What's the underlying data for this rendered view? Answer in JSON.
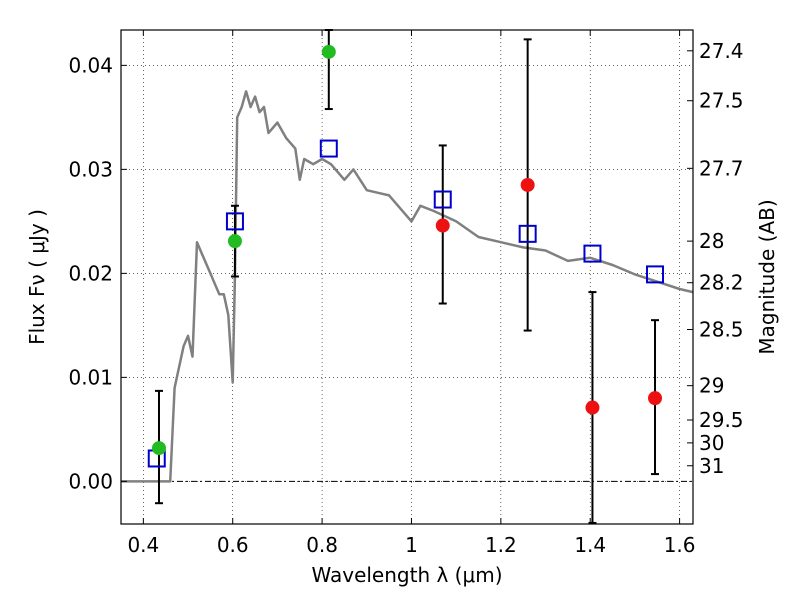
{
  "chart_data": {
    "type": "scatter",
    "xlabel": "Wavelength  λ (μm)",
    "ylabel": "Flux  Fν  ( μJy )",
    "ylabel_right": "Magnitude (AB)",
    "xlim": [
      0.35,
      1.63
    ],
    "ylim": [
      -0.0041,
      0.0434
    ],
    "grid": true,
    "x_ticks": [
      0.4,
      0.6,
      0.8,
      1.0,
      1.2,
      1.4,
      1.6
    ],
    "x_tick_labels": [
      "0.4",
      "0.6",
      "0.8",
      "1",
      "1.2",
      "1.4",
      "1.6"
    ],
    "y_ticks": [
      0.0,
      0.01,
      0.02,
      0.03,
      0.04
    ],
    "y_tick_labels": [
      "0.00",
      "0.01",
      "0.02",
      "0.03",
      "0.04"
    ],
    "right_ticks": [
      {
        "flux": 0.0414,
        "label": "27.4"
      },
      {
        "flux": 0.0366,
        "label": "27.5"
      },
      {
        "flux": 0.0301,
        "label": "27.7"
      },
      {
        "flux": 0.0231,
        "label": "28"
      },
      {
        "flux": 0.0191,
        "label": "28.2"
      },
      {
        "flux": 0.0146,
        "label": "28.5"
      },
      {
        "flux": 0.0092,
        "label": "29"
      },
      {
        "flux": 0.0059,
        "label": "29.5"
      },
      {
        "flux": 0.0037,
        "label": "30"
      },
      {
        "flux": 0.0015,
        "label": "31"
      }
    ],
    "colors": {
      "model": "#808080",
      "model_photometry": "#0000cc",
      "green_points": "#22bb22",
      "red_points": "#ee1111",
      "errorbar": "#000000"
    },
    "model_spectrum": {
      "x": [
        0.35,
        0.46,
        0.47,
        0.48,
        0.49,
        0.5,
        0.51,
        0.52,
        0.53,
        0.54,
        0.55,
        0.56,
        0.57,
        0.58,
        0.59,
        0.6,
        0.605,
        0.61,
        0.62,
        0.63,
        0.64,
        0.65,
        0.66,
        0.67,
        0.68,
        0.69,
        0.7,
        0.72,
        0.74,
        0.75,
        0.76,
        0.78,
        0.8,
        0.82,
        0.85,
        0.87,
        0.9,
        0.95,
        1.0,
        1.02,
        1.05,
        1.1,
        1.15,
        1.2,
        1.25,
        1.3,
        1.35,
        1.4,
        1.45,
        1.5,
        1.55,
        1.6,
        1.63
      ],
      "y": [
        0.0,
        0.0,
        0.009,
        0.011,
        0.013,
        0.014,
        0.012,
        0.023,
        0.022,
        0.021,
        0.02,
        0.019,
        0.018,
        0.018,
        0.016,
        0.0095,
        0.02,
        0.035,
        0.036,
        0.0375,
        0.036,
        0.037,
        0.0355,
        0.036,
        0.0335,
        0.034,
        0.0345,
        0.033,
        0.032,
        0.029,
        0.031,
        0.0305,
        0.031,
        0.0305,
        0.029,
        0.03,
        0.028,
        0.0275,
        0.025,
        0.0265,
        0.026,
        0.025,
        0.0235,
        0.023,
        0.0225,
        0.0222,
        0.0212,
        0.0215,
        0.0208,
        0.0199,
        0.0192,
        0.0185,
        0.0182
      ]
    },
    "model_photometry": {
      "x": [
        0.43,
        0.605,
        0.815,
        1.07,
        1.26,
        1.405,
        1.545
      ],
      "y": [
        0.0022,
        0.025,
        0.032,
        0.0271,
        0.0238,
        0.0219,
        0.0199
      ]
    },
    "observed_green": {
      "x": [
        0.435,
        0.605,
        0.815
      ],
      "y": [
        0.0032,
        0.0231,
        0.0413
      ],
      "err_low": [
        0.0053,
        0.0034,
        0.0055
      ],
      "err_high": [
        0.0055,
        0.0034,
        0.0021
      ]
    },
    "observed_red": {
      "x": [
        1.07,
        1.26,
        1.405,
        1.545
      ],
      "y": [
        0.0246,
        0.0285,
        0.0071,
        0.008
      ],
      "err_low": [
        0.0075,
        0.014,
        0.0111,
        0.0073
      ],
      "err_high": [
        0.0077,
        0.014,
        0.0111,
        0.0075
      ]
    }
  }
}
